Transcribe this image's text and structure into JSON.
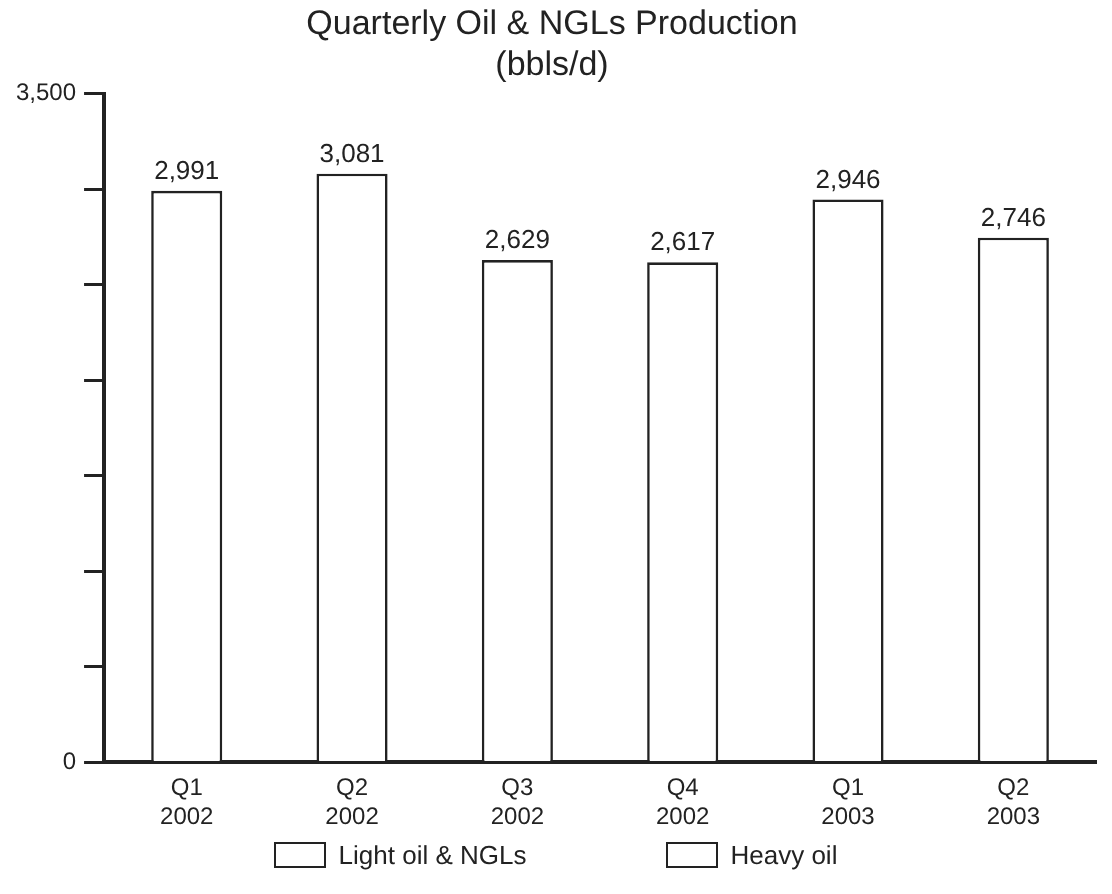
{
  "chart_data": {
    "type": "bar",
    "title": "Quarterly Oil & NGLs Production\n(bbls/d)",
    "categories": [
      "Q1\n2002",
      "Q2\n2002",
      "Q3\n2002",
      "Q4\n2002",
      "Q1\n2003",
      "Q2\n2003"
    ],
    "series": [
      {
        "name": "Light oil & NGLs",
        "color": "#ffffff",
        "values": [
          2991,
          3081,
          2629,
          2617,
          2946,
          2746
        ],
        "value_labels": [
          "2,991",
          "3,081",
          "2,629",
          "2,617",
          "2,946",
          "2,746"
        ]
      },
      {
        "name": "Heavy oil",
        "color": "#ffffff",
        "values": [
          null,
          null,
          null,
          null,
          null,
          null
        ]
      }
    ],
    "ylim": [
      0,
      3500
    ],
    "yticks": [
      0,
      {
        "value": 500,
        "label": null
      },
      {
        "value": 1000,
        "label": null
      },
      {
        "value": 1500,
        "label": null
      },
      {
        "value": 2000,
        "label": null
      },
      {
        "value": 2500,
        "label": null
      },
      {
        "value": 3000,
        "label": null
      },
      {
        "value": 3500,
        "label": "3,500"
      }
    ],
    "grid": false,
    "legend": "bottom"
  }
}
